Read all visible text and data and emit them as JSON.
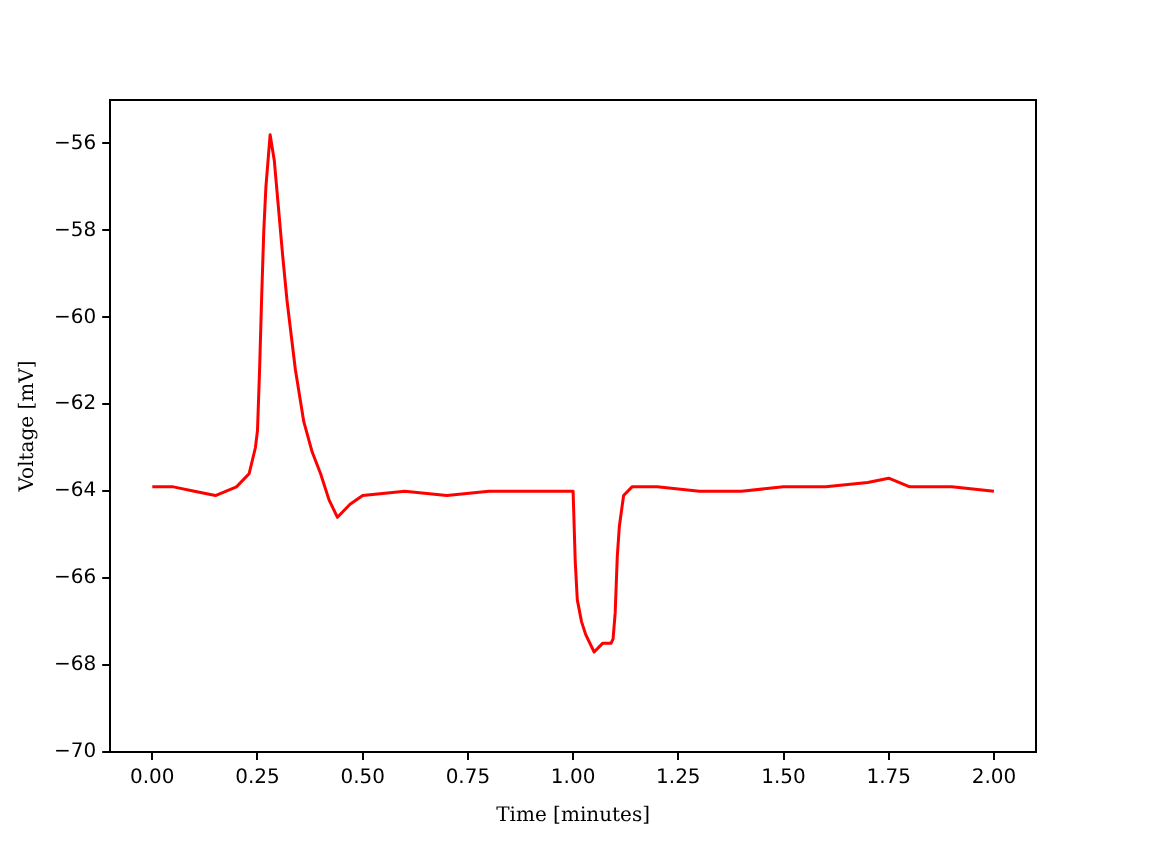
{
  "chart_data": {
    "type": "line",
    "xlabel": "Time [minutes]",
    "ylabel": "Voltage [mV]",
    "x": [
      0,
      0.05,
      0.1,
      0.15,
      0.2,
      0.23,
      0.245,
      0.25,
      0.255,
      0.26,
      0.265,
      0.27,
      0.28,
      0.29,
      0.3,
      0.31,
      0.32,
      0.34,
      0.36,
      0.38,
      0.4,
      0.42,
      0.44,
      0.47,
      0.5,
      0.6,
      0.7,
      0.8,
      0.9,
      0.99,
      1.0,
      1.005,
      1.01,
      1.02,
      1.03,
      1.05,
      1.07,
      1.09,
      1.095,
      1.1,
      1.105,
      1.11,
      1.12,
      1.14,
      1.2,
      1.3,
      1.4,
      1.5,
      1.6,
      1.7,
      1.75,
      1.8,
      1.9,
      2.0
    ],
    "series": [
      {
        "color": "#ff0000",
        "values": [
          -63.9,
          -63.9,
          -64.0,
          -64.1,
          -63.9,
          -63.6,
          -63.0,
          -62.6,
          -61.2,
          -59.5,
          -58.0,
          -57.0,
          -55.8,
          -56.4,
          -57.5,
          -58.6,
          -59.6,
          -61.2,
          -62.4,
          -63.1,
          -63.6,
          -64.2,
          -64.6,
          -64.3,
          -64.1,
          -64.0,
          -64.1,
          -64.0,
          -64.0,
          -64.0,
          -64.0,
          -65.6,
          -66.5,
          -67.0,
          -67.3,
          -67.7,
          -67.5,
          -67.5,
          -67.4,
          -66.8,
          -65.5,
          -64.8,
          -64.1,
          -63.9,
          -63.9,
          -64.0,
          -64.0,
          -63.9,
          -63.9,
          -63.8,
          -63.7,
          -63.9,
          -63.9,
          -64.0
        ]
      }
    ],
    "xlim": [
      -0.1,
      2.1
    ],
    "xticks": [
      {
        "value": 0,
        "label": "0.00"
      },
      {
        "value": 0.25,
        "label": "0.25"
      },
      {
        "value": 0.5,
        "label": "0.50"
      },
      {
        "value": 0.75,
        "label": "0.75"
      },
      {
        "value": 1,
        "label": "1.00"
      },
      {
        "value": 1.25,
        "label": "1.25"
      },
      {
        "value": 1.5,
        "label": "1.50"
      },
      {
        "value": 1.75,
        "label": "1.75"
      },
      {
        "value": 2,
        "label": "2.00"
      }
    ],
    "ylim": [
      -70,
      -55
    ],
    "yticks": [
      {
        "value": -70,
        "label": "−70"
      },
      {
        "value": -68,
        "label": "−68"
      },
      {
        "value": -66,
        "label": "−66"
      },
      {
        "value": -64,
        "label": "−64"
      },
      {
        "value": -62,
        "label": "−62"
      },
      {
        "value": -60,
        "label": "−60"
      },
      {
        "value": -58,
        "label": "−58"
      },
      {
        "value": -56,
        "label": "−56"
      }
    ],
    "grid": false,
    "legend": false,
    "marker": "none",
    "line_style": "solid"
  }
}
